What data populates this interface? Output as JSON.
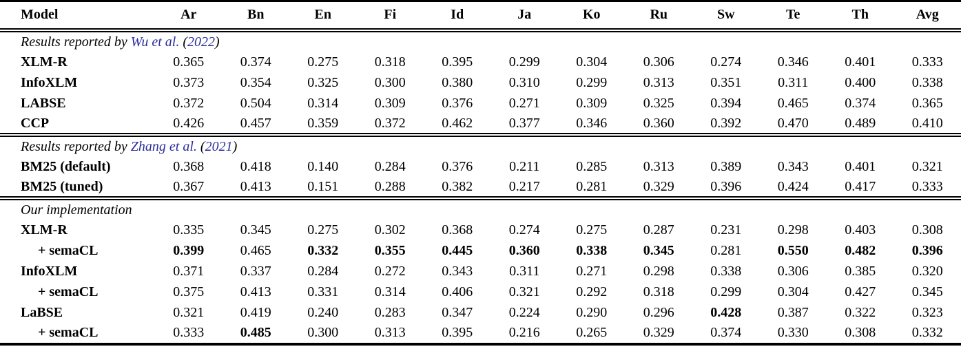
{
  "page": {
    "background": "#ffffff",
    "text_color": "#000000",
    "citation_color": "#2b2d9e"
  },
  "table": {
    "columns": [
      "Model",
      "Ar",
      "Bn",
      "En",
      "Fi",
      "Id",
      "Ja",
      "Ko",
      "Ru",
      "Sw",
      "Te",
      "Th",
      "Avg"
    ],
    "sections": [
      {
        "label_prefix": "Results reported by ",
        "citation": "Wu et al.",
        "paren_open": " (",
        "year": "2022",
        "paren_close": ")",
        "rows": [
          {
            "model": "XLM-R",
            "indent": false,
            "values": [
              "0.365",
              "0.374",
              "0.275",
              "0.318",
              "0.395",
              "0.299",
              "0.304",
              "0.306",
              "0.274",
              "0.346",
              "0.401",
              "0.333"
            ],
            "bold": []
          },
          {
            "model": "InfoXLM",
            "indent": false,
            "values": [
              "0.373",
              "0.354",
              "0.325",
              "0.300",
              "0.380",
              "0.310",
              "0.299",
              "0.313",
              "0.351",
              "0.311",
              "0.400",
              "0.338"
            ],
            "bold": []
          },
          {
            "model": "LABSE",
            "indent": false,
            "values": [
              "0.372",
              "0.504",
              "0.314",
              "0.309",
              "0.376",
              "0.271",
              "0.309",
              "0.325",
              "0.394",
              "0.465",
              "0.374",
              "0.365"
            ],
            "bold": []
          },
          {
            "model": "CCP",
            "indent": false,
            "values": [
              "0.426",
              "0.457",
              "0.359",
              "0.372",
              "0.462",
              "0.377",
              "0.346",
              "0.360",
              "0.392",
              "0.470",
              "0.489",
              "0.410"
            ],
            "bold": []
          }
        ]
      },
      {
        "label_prefix": "Results reported by ",
        "citation": "Zhang et al.",
        "paren_open": " (",
        "year": "2021",
        "paren_close": ")",
        "rows": [
          {
            "model": "BM25 (default)",
            "indent": false,
            "values": [
              "0.368",
              "0.418",
              "0.140",
              "0.284",
              "0.376",
              "0.211",
              "0.285",
              "0.313",
              "0.389",
              "0.343",
              "0.401",
              "0.321"
            ],
            "bold": []
          },
          {
            "model": "BM25 (tuned)",
            "indent": false,
            "values": [
              "0.367",
              "0.413",
              "0.151",
              "0.288",
              "0.382",
              "0.217",
              "0.281",
              "0.329",
              "0.396",
              "0.424",
              "0.417",
              "0.333"
            ],
            "bold": []
          }
        ]
      },
      {
        "label_prefix": "Our implementation",
        "citation": "",
        "paren_open": "",
        "year": "",
        "paren_close": "",
        "rows": [
          {
            "model": "XLM-R",
            "indent": false,
            "values": [
              "0.335",
              "0.345",
              "0.275",
              "0.302",
              "0.368",
              "0.274",
              "0.275",
              "0.287",
              "0.231",
              "0.298",
              "0.403",
              "0.308"
            ],
            "bold": []
          },
          {
            "model": "+ semaCL",
            "indent": true,
            "values": [
              "0.399",
              "0.465",
              "0.332",
              "0.355",
              "0.445",
              "0.360",
              "0.338",
              "0.345",
              "0.281",
              "0.550",
              "0.482",
              "0.396"
            ],
            "bold": [
              0,
              2,
              3,
              4,
              5,
              6,
              7,
              9,
              10,
              11
            ]
          },
          {
            "model": "InfoXLM",
            "indent": false,
            "values": [
              "0.371",
              "0.337",
              "0.284",
              "0.272",
              "0.343",
              "0.311",
              "0.271",
              "0.298",
              "0.338",
              "0.306",
              "0.385",
              "0.320"
            ],
            "bold": []
          },
          {
            "model": "+ semaCL",
            "indent": true,
            "values": [
              "0.375",
              "0.413",
              "0.331",
              "0.314",
              "0.406",
              "0.321",
              "0.292",
              "0.318",
              "0.299",
              "0.304",
              "0.427",
              "0.345"
            ],
            "bold": []
          },
          {
            "model": "LaBSE",
            "indent": false,
            "values": [
              "0.321",
              "0.419",
              "0.240",
              "0.283",
              "0.347",
              "0.224",
              "0.290",
              "0.296",
              "0.428",
              "0.387",
              "0.322",
              "0.323"
            ],
            "bold": [
              8
            ]
          },
          {
            "model": "+ semaCL",
            "indent": true,
            "values": [
              "0.333",
              "0.485",
              "0.300",
              "0.313",
              "0.395",
              "0.216",
              "0.265",
              "0.329",
              "0.374",
              "0.330",
              "0.308",
              "0.332"
            ],
            "bold": [
              1
            ]
          }
        ]
      }
    ]
  }
}
